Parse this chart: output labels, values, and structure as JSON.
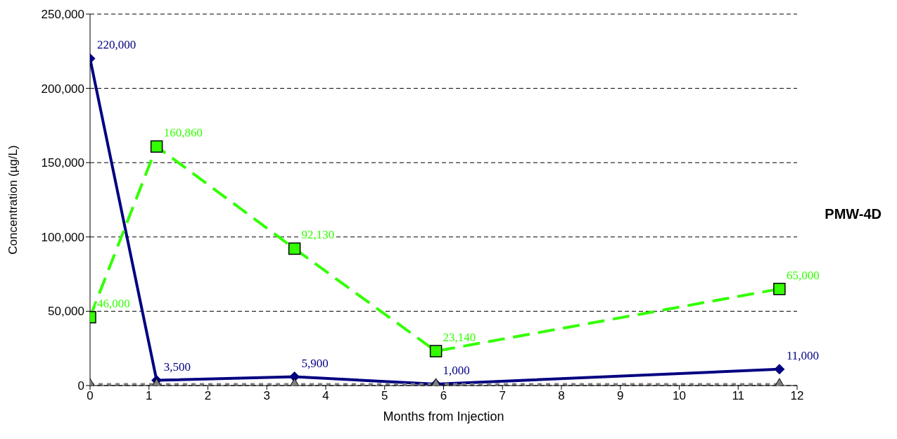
{
  "chart_data": {
    "type": "line",
    "xlabel": "Months from Injection",
    "ylabel": "Concentration (µg/L)",
    "annotations": [
      "PMW-4D"
    ],
    "xlim": [
      0,
      12
    ],
    "xticks": [
      0,
      1,
      2,
      3,
      4,
      5,
      6,
      7,
      8,
      9,
      10,
      11,
      12
    ],
    "ylim": [
      0,
      250000
    ],
    "yticks": [
      0,
      {
        "value": 50000,
        "label": "50,000"
      },
      {
        "value": 100000,
        "label": "100,000"
      },
      {
        "value": 150000,
        "label": "150,000"
      },
      {
        "value": 200000,
        "label": "200,000"
      },
      {
        "value": 250000,
        "label": "250,000"
      }
    ],
    "grid": "y",
    "series": [
      {
        "color": "#000080",
        "marker": "diamond",
        "line_style": "solid",
        "x": [
          0,
          1.13,
          3.47,
          5.87,
          11.7
        ],
        "values": [
          220000,
          3500,
          5900,
          1000,
          11000
        ],
        "value_labels": [
          "220,000",
          "3,500",
          "5,900",
          "1,000",
          "11,000"
        ]
      },
      {
        "color": "#33ff00",
        "marker": "square",
        "line_style": "dashed",
        "x": [
          0,
          1.13,
          3.47,
          5.87,
          11.7
        ],
        "values": [
          46000,
          160860,
          92130,
          23140,
          65000
        ],
        "value_labels": [
          "46,000",
          "160,860",
          "92,130",
          "23,140",
          "65,000"
        ]
      },
      {
        "color": "#808080",
        "marker": "triangle",
        "line_style": "dotted",
        "x": [
          0,
          1.13,
          3.47,
          5.87,
          11.7
        ],
        "values": [
          1000,
          1000,
          1000,
          1000,
          1000
        ]
      }
    ]
  }
}
